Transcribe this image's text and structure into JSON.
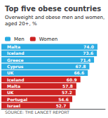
{
  "chart_data": {
    "type": "bar",
    "orientation": "horizontal",
    "title": "Top five obese countries",
    "subtitle": "Overweight and obese men and women,\naged 20+, %",
    "source": "SOURCE: THE LANCET REPORT",
    "categories": [
      "Malta",
      "Iceland",
      "Greece",
      "Cyprus",
      "UK",
      "Iceland",
      "Malta",
      "UK",
      "Portugal",
      "Israel"
    ],
    "series": [
      {
        "name": "Men",
        "color": "#29ABE2",
        "values": [
          74.0,
          73.6,
          71.4,
          67.8,
          66.6,
          null,
          null,
          null,
          null,
          null
        ],
        "value_labels": [
          "74.0",
          "73.6",
          "71.4",
          "67.8",
          "66.6",
          null,
          null,
          null,
          null,
          null
        ]
      },
      {
        "name": "Women",
        "color": "#CC2222",
        "values": [
          null,
          null,
          null,
          null,
          null,
          60.9,
          57.8,
          57.2,
          54.6,
          52.7
        ],
        "value_labels": [
          null,
          null,
          null,
          null,
          null,
          "60.9",
          "57.8",
          "57.2",
          "54.6",
          "52.7"
        ]
      }
    ],
    "xlim": [
      0,
      80
    ],
    "data_labels": true,
    "tick_labels": false,
    "grid": false,
    "legend": "top left"
  }
}
